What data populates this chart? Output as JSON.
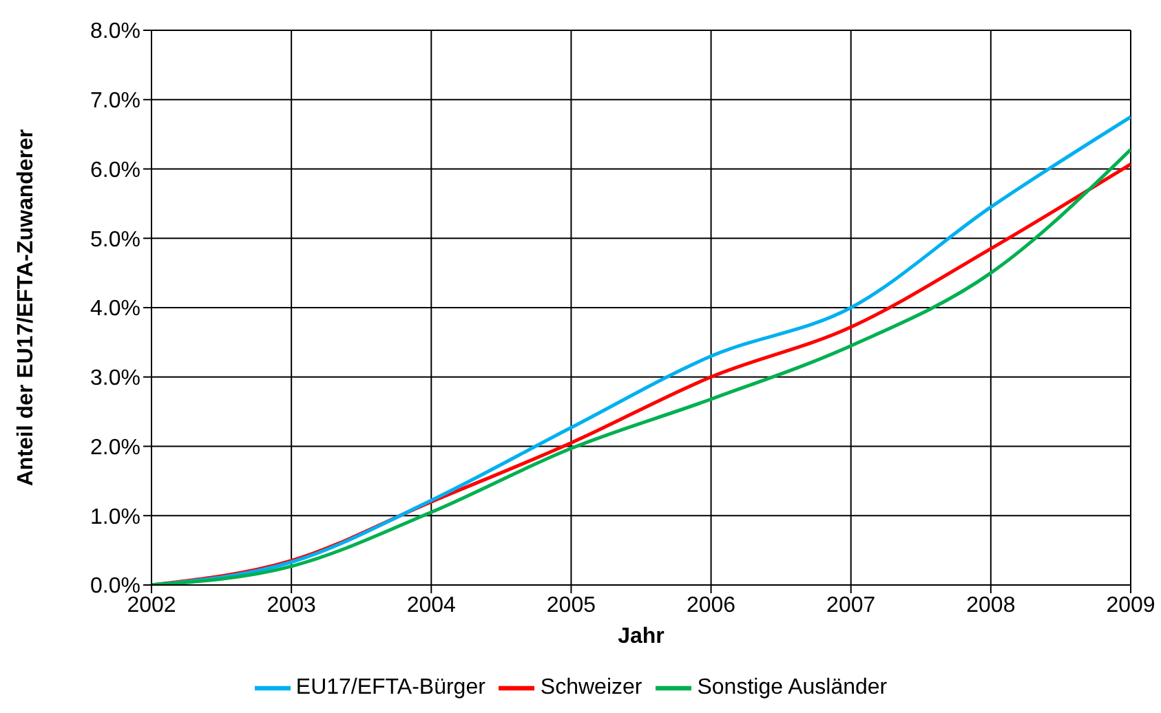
{
  "chart_data": {
    "type": "line",
    "xlabel": "Jahr",
    "ylabel": "Anteil der EU17/EFTA-Zuwanderer",
    "x": [
      2002,
      2003,
      2004,
      2005,
      2006,
      2007,
      2008,
      2009
    ],
    "series": [
      {
        "name": "Schweizer",
        "color": "#ff0000",
        "values": [
          0,
          0.35,
          1.2,
          2.05,
          3.0,
          3.72,
          4.85,
          6.07
        ]
      },
      {
        "name": "EU17/EFTA-Bürger",
        "color": "#00b0f0",
        "values": [
          0,
          0.33,
          1.22,
          2.27,
          3.3,
          4.0,
          5.45,
          6.75
        ]
      },
      {
        "name": "Sonstige Ausländer",
        "color": "#00b050",
        "values": [
          0,
          0.27,
          1.05,
          1.97,
          2.68,
          3.45,
          4.5,
          6.28
        ]
      }
    ],
    "xlim": [
      2002,
      2009
    ],
    "xticks": [
      2002,
      2003,
      2004,
      2005,
      2006,
      2007,
      2008,
      2009
    ],
    "ylim": [
      0,
      8
    ],
    "yticks": [
      {
        "value": 0,
        "label": "0.0%"
      },
      {
        "value": 1,
        "label": "1.0%"
      },
      {
        "value": 2,
        "label": "2.0%"
      },
      {
        "value": 3,
        "label": "3.0%"
      },
      {
        "value": 4,
        "label": "4.0%"
      },
      {
        "value": 5,
        "label": "5.0%"
      },
      {
        "value": 6,
        "label": "6.0%"
      },
      {
        "value": 7,
        "label": "7.0%"
      },
      {
        "value": 8,
        "label": "8.0%"
      }
    ],
    "grid": true,
    "legend": "bottom",
    "marker": "none",
    "line_style": "solid"
  }
}
